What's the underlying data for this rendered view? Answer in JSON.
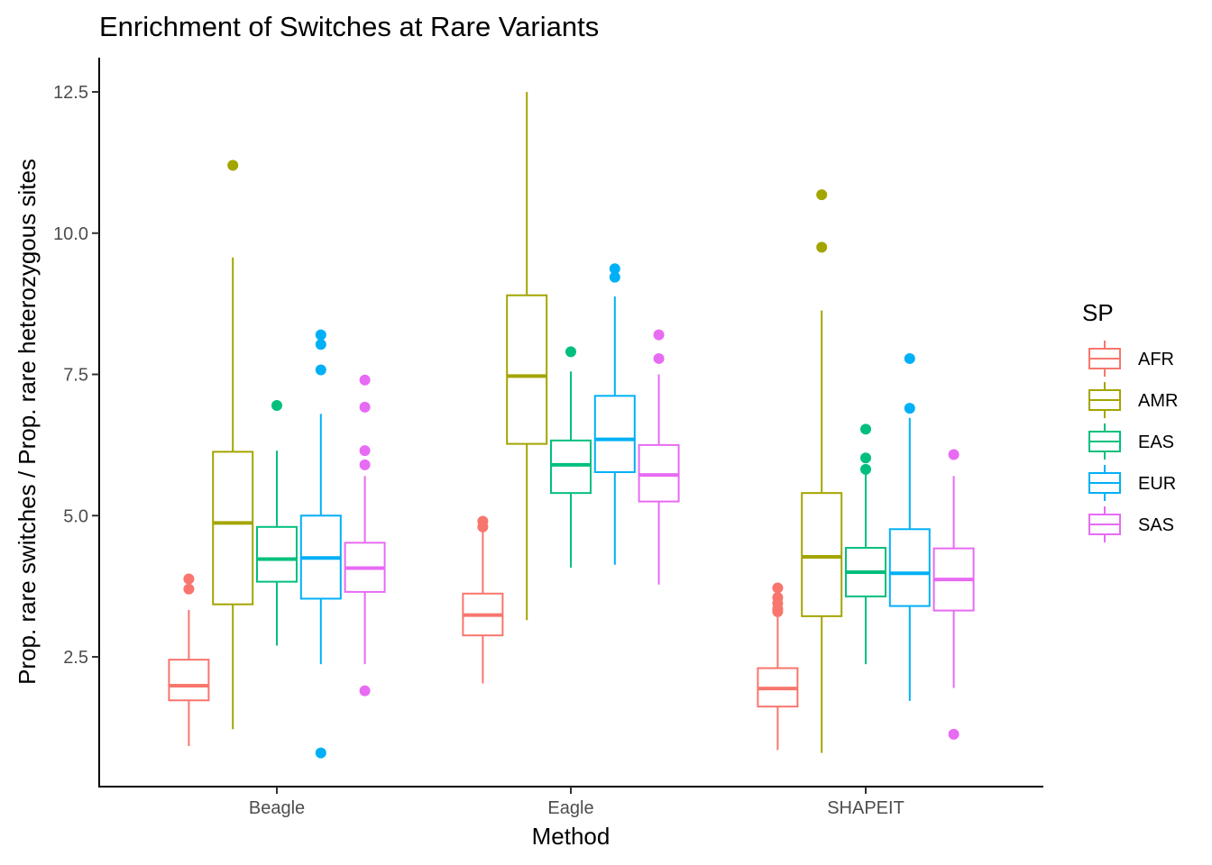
{
  "chart_data": {
    "type": "boxplot",
    "title": "Enrichment of Switches at Rare Variants",
    "xlabel": "Method",
    "ylabel": "Prop. rare switches / Prop. rare heterozygous sites",
    "categories": [
      "Beagle",
      "Eagle",
      "SHAPEIT"
    ],
    "yticks": [
      "2.5",
      "5.0",
      "7.5",
      "10.0",
      "12.5"
    ],
    "ylim": [
      0.5,
      13.0
    ],
    "grid": false,
    "legend": {
      "title": "SP",
      "position": "right"
    },
    "series": [
      {
        "name": "AFR",
        "color": "#F8766D",
        "boxes": [
          {
            "min": 0.92,
            "q1": 1.73,
            "median": 1.99,
            "q3": 2.45,
            "max": 3.33,
            "outliers": [
              3.7,
              3.88
            ]
          },
          {
            "min": 2.03,
            "q1": 2.88,
            "median": 3.24,
            "q3": 3.62,
            "max": 4.73,
            "outliers": [
              4.8,
              4.9
            ]
          },
          {
            "min": 0.85,
            "q1": 1.62,
            "median": 1.94,
            "q3": 2.3,
            "max": 3.25,
            "outliers": [
              3.3,
              3.35,
              3.45,
              3.55,
              3.72
            ]
          }
        ]
      },
      {
        "name": "AMR",
        "color": "#A3A500",
        "boxes": [
          {
            "min": 1.22,
            "q1": 3.43,
            "median": 4.87,
            "q3": 6.13,
            "max": 9.57,
            "outliers": [
              11.2
            ]
          },
          {
            "min": 3.15,
            "q1": 6.27,
            "median": 7.47,
            "q3": 8.9,
            "max": 12.5,
            "outliers": []
          },
          {
            "min": 0.8,
            "q1": 3.22,
            "median": 4.27,
            "q3": 5.4,
            "max": 8.63,
            "outliers": [
              9.75,
              10.68
            ]
          }
        ]
      },
      {
        "name": "EAS",
        "color": "#00BF7D",
        "boxes": [
          {
            "min": 2.7,
            "q1": 3.83,
            "median": 4.23,
            "q3": 4.8,
            "max": 6.15,
            "outliers": [
              6.95
            ]
          },
          {
            "min": 4.08,
            "q1": 5.4,
            "median": 5.9,
            "q3": 6.33,
            "max": 7.55,
            "outliers": [
              7.9
            ]
          },
          {
            "min": 2.37,
            "q1": 3.57,
            "median": 4.0,
            "q3": 4.43,
            "max": 5.75,
            "outliers": [
              5.82,
              6.02,
              6.53
            ]
          }
        ]
      },
      {
        "name": "EUR",
        "color": "#00B0F6",
        "boxes": [
          {
            "min": 2.37,
            "q1": 3.53,
            "median": 4.25,
            "q3": 5.0,
            "max": 6.8,
            "outliers": [
              0.8,
              7.58,
              8.03,
              8.2
            ]
          },
          {
            "min": 4.13,
            "q1": 5.77,
            "median": 6.35,
            "q3": 7.12,
            "max": 8.88,
            "outliers": [
              9.22,
              9.37
            ]
          },
          {
            "min": 1.72,
            "q1": 3.4,
            "median": 3.98,
            "q3": 4.76,
            "max": 6.73,
            "outliers": [
              6.9,
              7.78
            ]
          }
        ]
      },
      {
        "name": "SAS",
        "color": "#E76BF3",
        "boxes": [
          {
            "min": 2.37,
            "q1": 3.65,
            "median": 4.07,
            "q3": 4.52,
            "max": 5.7,
            "outliers": [
              1.9,
              5.9,
              6.15,
              6.92,
              7.4
            ]
          },
          {
            "min": 3.78,
            "q1": 5.25,
            "median": 5.72,
            "q3": 6.25,
            "max": 7.5,
            "outliers": [
              7.78,
              8.2
            ]
          },
          {
            "min": 1.95,
            "q1": 3.32,
            "median": 3.87,
            "q3": 4.42,
            "max": 5.7,
            "outliers": [
              1.13,
              6.08
            ]
          }
        ]
      }
    ]
  }
}
